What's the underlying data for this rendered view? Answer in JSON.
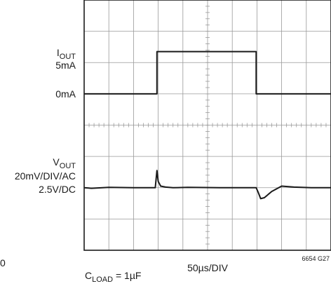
{
  "chart_data": {
    "type": "line",
    "grid": true,
    "grid_divisions": {
      "x": 10,
      "y": 8
    },
    "xlabel": "50µs/DIV",
    "x_units_per_div": "50µs",
    "figure_id": "6654 G27",
    "condition": {
      "prefix": "C",
      "sub": "LOAD",
      "suffix": " = 1µF"
    },
    "stray_label": "0",
    "channels": [
      {
        "id": "iout",
        "name": {
          "main": "I",
          "sub": "OUT"
        },
        "scale": "5mA",
        "levels": [
          "5mA",
          "0mA"
        ],
        "x_div": [
          0,
          2.95,
          2.95,
          6.97,
          6.97,
          10
        ],
        "y_div": [
          0,
          0,
          1.35,
          1.35,
          0,
          0
        ]
      },
      {
        "id": "vout",
        "name": {
          "main": "V",
          "sub": "OUT"
        },
        "scale": "20mV/DIV/AC",
        "offset": "2.5V/DC",
        "x_div": [
          0,
          0.3,
          1.0,
          2.0,
          2.88,
          2.95,
          3.0,
          3.1,
          3.3,
          3.6,
          4.2,
          5.5,
          6.97,
          7.05,
          7.15,
          7.3,
          7.6,
          8.0,
          8.5,
          9.2,
          10
        ],
        "y_div": [
          0,
          -0.02,
          0.01,
          0.0,
          0.0,
          0.55,
          0.2,
          0.05,
          0.02,
          0.0,
          0.01,
          0.0,
          0.0,
          -0.15,
          -0.35,
          -0.32,
          -0.12,
          0.05,
          0.02,
          0.0,
          0.0
        ]
      }
    ]
  }
}
